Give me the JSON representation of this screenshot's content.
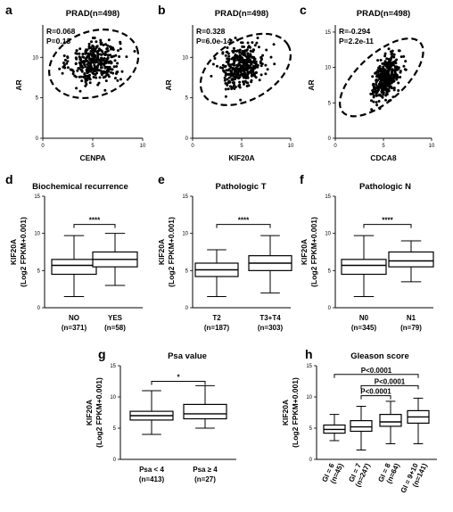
{
  "chart_data": [
    {
      "panel": "a",
      "type": "scatter",
      "title": "PRAD(n=498)",
      "xlabel": "CENPA",
      "ylabel": "AR",
      "xticks": [
        "0",
        "5",
        "10"
      ],
      "yticks": [
        "0",
        "5",
        "10"
      ],
      "stats": [
        "R=0.068",
        "P=0.13"
      ],
      "xlim": [
        0,
        10
      ],
      "ylim": [
        0,
        14
      ]
    },
    {
      "panel": "b",
      "type": "scatter",
      "title": "PRAD(n=498)",
      "xlabel": "KIF20A",
      "ylabel": "AR",
      "xticks": [
        "0",
        "5",
        "10"
      ],
      "yticks": [
        "0",
        "5",
        "10"
      ],
      "stats": [
        "R=0.328",
        "P=6.0e-14"
      ],
      "xlim": [
        0,
        10
      ],
      "ylim": [
        0,
        14
      ]
    },
    {
      "panel": "c",
      "type": "scatter",
      "title": "PRAD(n=498)",
      "xlabel": "CDCA8",
      "ylabel": "AR",
      "xticks": [
        "0",
        "5",
        "10"
      ],
      "yticks": [
        "0",
        "5",
        "10",
        "15"
      ],
      "stats": [
        "R=-0.294",
        "P=2.2e-11"
      ],
      "xlim": [
        0,
        10
      ],
      "ylim": [
        0,
        16
      ]
    },
    {
      "panel": "d",
      "type": "box",
      "title": "Biochemical recurrence",
      "ylabel": "KIF20A",
      "ylabel2": "(Log2 FPKM+0.001)",
      "yticks": [
        "0",
        "5",
        "10",
        "15"
      ],
      "ylim": [
        0,
        15
      ],
      "categories": [
        "NO",
        "YES"
      ],
      "ns": [
        "(n=371)",
        "(n=58)"
      ],
      "boxes": [
        {
          "min": 1.5,
          "q1": 4.5,
          "median": 5.7,
          "q3": 6.5,
          "max": 9.7
        },
        {
          "min": 3.0,
          "q1": 5.5,
          "median": 6.5,
          "q3": 7.5,
          "max": 10.0
        }
      ],
      "brackets": [
        {
          "from": 0,
          "to": 1,
          "y": 11.2,
          "label": "****"
        }
      ]
    },
    {
      "panel": "e",
      "type": "box",
      "title": "Pathologic T",
      "ylabel": "KIF20A",
      "ylabel2": "(Log2 FPKM+0.001)",
      "yticks": [
        "0",
        "5",
        "10",
        "15"
      ],
      "ylim": [
        0,
        15
      ],
      "categories": [
        "T2",
        "T3+T4"
      ],
      "ns": [
        "(n=187)",
        "(n=303)"
      ],
      "boxes": [
        {
          "min": 1.5,
          "q1": 4.2,
          "median": 5.1,
          "q3": 6.0,
          "max": 7.8
        },
        {
          "min": 2.0,
          "q1": 5.0,
          "median": 6.0,
          "q3": 7.0,
          "max": 9.7
        }
      ],
      "brackets": [
        {
          "from": 0,
          "to": 1,
          "y": 11.2,
          "label": "****"
        }
      ]
    },
    {
      "panel": "f",
      "type": "box",
      "title": "Pathologic N",
      "ylabel": "KIF20A",
      "ylabel2": "(Log2 FPKM+0.001)",
      "yticks": [
        "0",
        "5",
        "10",
        "15"
      ],
      "ylim": [
        0,
        15
      ],
      "categories": [
        "N0",
        "N1"
      ],
      "ns": [
        "(n=345)",
        "(n=79)"
      ],
      "boxes": [
        {
          "min": 1.5,
          "q1": 4.5,
          "median": 5.7,
          "q3": 6.5,
          "max": 9.7
        },
        {
          "min": 3.5,
          "q1": 5.5,
          "median": 6.3,
          "q3": 7.5,
          "max": 9.0
        }
      ],
      "brackets": [
        {
          "from": 0,
          "to": 1,
          "y": 11.2,
          "label": "****"
        }
      ]
    },
    {
      "panel": "g",
      "type": "box",
      "title": "Psa value",
      "ylabel": "KIF20A",
      "ylabel2": "(Log2 FPKM+0.001)",
      "yticks": [
        "0",
        "5",
        "10",
        "15"
      ],
      "ylim": [
        0,
        15
      ],
      "categories": [
        "Psa < 4",
        "Psa ≥ 4"
      ],
      "ns": [
        "(n=413)",
        "(n=27)"
      ],
      "boxes": [
        {
          "min": 4.0,
          "q1": 6.3,
          "median": 7.0,
          "q3": 7.7,
          "max": 11.0
        },
        {
          "min": 5.0,
          "q1": 6.5,
          "median": 7.3,
          "q3": 8.8,
          "max": 11.8
        }
      ],
      "brackets": [
        {
          "from": 0,
          "to": 1,
          "y": 12.5,
          "label": "*"
        }
      ]
    },
    {
      "panel": "h",
      "type": "box",
      "title": "Gleason score",
      "ylabel": "KIF20A",
      "ylabel2": "(Log2 FPKM+0.001)",
      "yticks": [
        "0",
        "5",
        "10",
        "15"
      ],
      "ylim": [
        0,
        15
      ],
      "categories": [
        "GI = 6",
        "GI = 7",
        "GI = 8",
        "GI = 9+10"
      ],
      "ns": [
        "(n=45)",
        "(n=247)",
        "(n=64)",
        "(n=141)"
      ],
      "boxes": [
        {
          "min": 3.0,
          "q1": 4.2,
          "median": 4.8,
          "q3": 5.5,
          "max": 7.2
        },
        {
          "min": 1.5,
          "q1": 4.5,
          "median": 5.2,
          "q3": 6.2,
          "max": 8.5
        },
        {
          "min": 2.5,
          "q1": 5.3,
          "median": 6.0,
          "q3": 7.2,
          "max": 9.3
        },
        {
          "min": 2.5,
          "q1": 5.8,
          "median": 6.8,
          "q3": 7.8,
          "max": 9.8
        }
      ],
      "brackets": [
        {
          "from": 0,
          "to": 3,
          "y": 13.6,
          "label": "P<0.0001"
        },
        {
          "from": 1,
          "to": 3,
          "y": 11.8,
          "label": "P<0.0001"
        },
        {
          "from": 1,
          "to": 2,
          "y": 10.2,
          "label": "P<0.0001"
        }
      ]
    }
  ]
}
